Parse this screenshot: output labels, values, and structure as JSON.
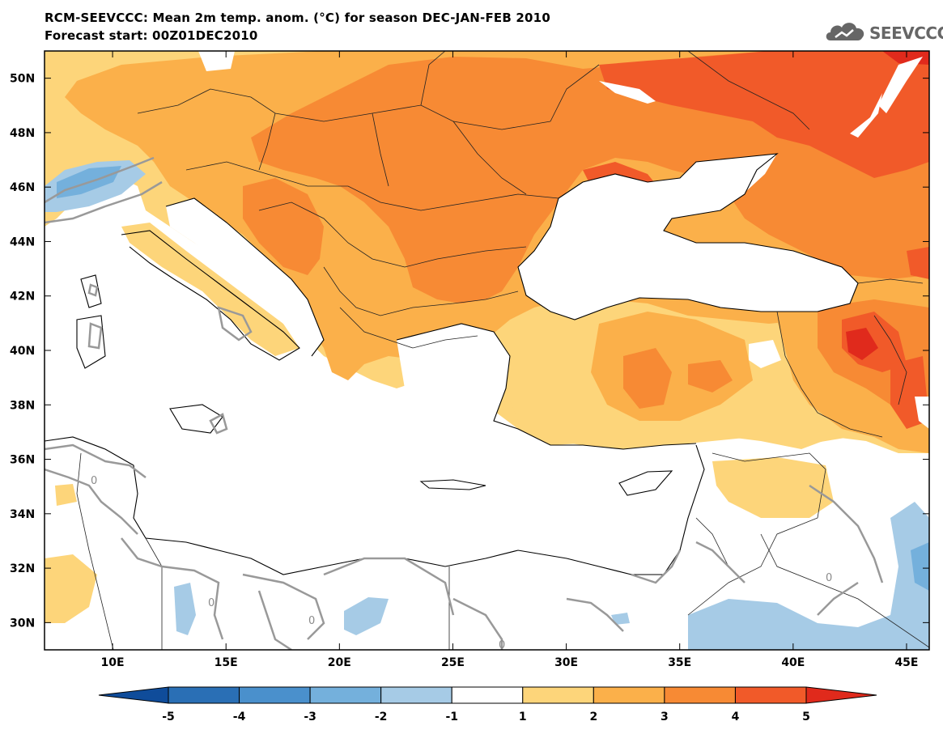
{
  "title_line1": "RCM-SEEVCCC: Mean 2m temp. anom. (°C) for season DEC-JAN-FEB 2010",
  "title_line2": "Forecast start: 00Z01DEC2010",
  "logo_text": "SEEVCCC",
  "map": {
    "lon_range": [
      7,
      46
    ],
    "lat_range": [
      29,
      51
    ],
    "lat_ticks": [
      "30N",
      "32N",
      "34N",
      "36N",
      "38N",
      "40N",
      "42N",
      "44N",
      "46N",
      "48N",
      "50N"
    ],
    "lon_ticks": [
      "10E",
      "15E",
      "20E",
      "25E",
      "30E",
      "35E",
      "40E",
      "45E"
    ],
    "contour_labels": [
      "0",
      "0",
      "0",
      "0",
      "0"
    ]
  },
  "colorbar": {
    "labels": [
      "-5",
      "-4",
      "-3",
      "-2",
      "-1",
      "1",
      "2",
      "3",
      "4",
      "5"
    ],
    "colors": [
      "#0f4c9a",
      "#2a6fb5",
      "#4a90cc",
      "#74b0dc",
      "#a6cbe6",
      "#ffffff",
      "#fdd57a",
      "#fbb04a",
      "#f78a34",
      "#f15a29",
      "#e02a1c"
    ]
  }
}
